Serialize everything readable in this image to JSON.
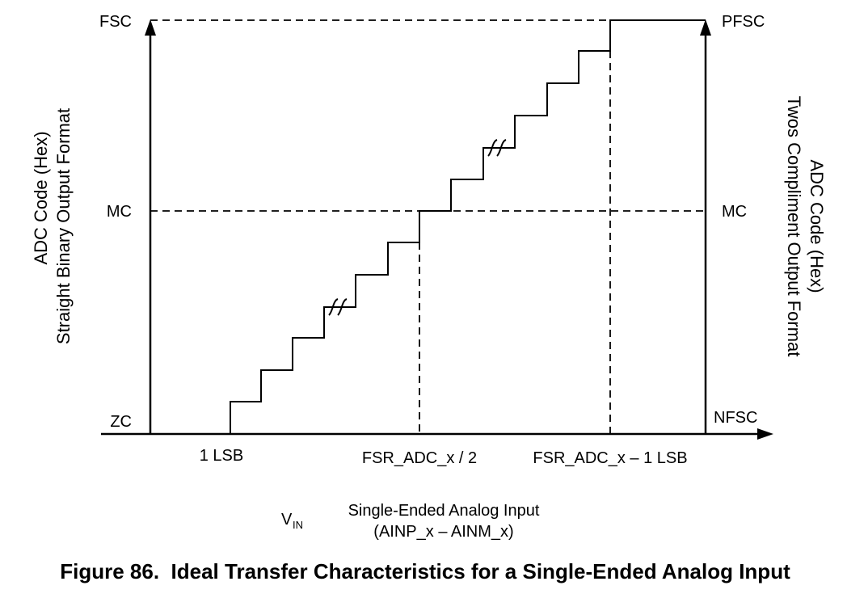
{
  "left_labels": {
    "top": "FSC",
    "mid": "MC",
    "bottom": "ZC"
  },
  "right_labels": {
    "top": "PFSC",
    "mid": "MC",
    "bottom": "NFSC"
  },
  "left_axis_title": [
    "ADC Code (Hex)",
    "Straight Binary Output Format"
  ],
  "right_axis_title": [
    "ADC Code (Hex)",
    "Twos Compliment Output Format"
  ],
  "x_labels": [
    "1 LSB",
    "FSR_ADC_x / 2",
    "FSR_ADC_x – 1 LSB"
  ],
  "input": {
    "symbol": "V",
    "subscript": "IN",
    "lines": [
      "Single-Ended Analog Input",
      "(AINP_x – AINM_x)"
    ]
  },
  "caption": "Figure 86.  Ideal Transfer Characteristics for a Single-Ended Analog Input"
}
